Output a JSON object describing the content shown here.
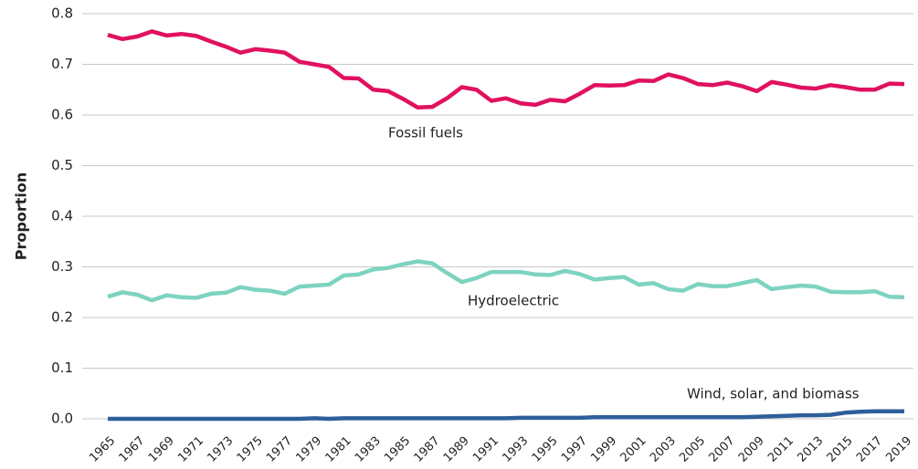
{
  "chart_data": {
    "type": "line",
    "y_label": "Proportion",
    "x": [
      1965,
      1966,
      1967,
      1968,
      1969,
      1970,
      1971,
      1972,
      1973,
      1974,
      1975,
      1976,
      1977,
      1978,
      1979,
      1980,
      1981,
      1982,
      1983,
      1984,
      1985,
      1986,
      1987,
      1988,
      1989,
      1990,
      1991,
      1992,
      1993,
      1994,
      1995,
      1996,
      1997,
      1998,
      1999,
      2000,
      2001,
      2002,
      2003,
      2004,
      2005,
      2006,
      2007,
      2008,
      2009,
      2010,
      2011,
      2012,
      2013,
      2014,
      2015,
      2016,
      2017,
      2018,
      2019
    ],
    "xlim": [
      1965,
      2019
    ],
    "xticks": [
      1965,
      1967,
      1969,
      1971,
      1973,
      1975,
      1977,
      1979,
      1981,
      1983,
      1985,
      1987,
      1989,
      1991,
      1993,
      1995,
      1997,
      1999,
      2001,
      2003,
      2005,
      2007,
      2009,
      2011,
      2013,
      2015,
      2017,
      2019
    ],
    "ylim": [
      0,
      0.8
    ],
    "yticks": [
      {
        "value": 0,
        "label": "0.0"
      },
      0.1,
      0.2,
      0.3,
      0.4,
      0.5,
      0.6,
      0.7,
      0.8
    ],
    "grid": true,
    "series": [
      {
        "name": "Fossil fuels",
        "color": "#e0115f",
        "values": [
          0.758,
          0.75,
          0.755,
          0.765,
          0.757,
          0.76,
          0.756,
          0.745,
          0.735,
          0.723,
          0.73,
          0.727,
          0.723,
          0.705,
          0.7,
          0.695,
          0.673,
          0.672,
          0.65,
          0.647,
          0.632,
          0.615,
          0.616,
          0.633,
          0.655,
          0.65,
          0.628,
          0.633,
          0.623,
          0.62,
          0.63,
          0.627,
          0.642,
          0.659,
          0.658,
          0.659,
          0.668,
          0.667,
          0.68,
          0.673,
          0.661,
          0.659,
          0.664,
          0.657,
          0.647,
          0.665,
          0.66,
          0.654,
          0.652,
          0.659,
          0.655,
          0.65,
          0.65,
          0.662,
          0.661
        ]
      },
      {
        "name": "Hydroelectric",
        "color": "#7dd3c0",
        "values": [
          0.241,
          0.25,
          0.245,
          0.234,
          0.244,
          0.24,
          0.239,
          0.247,
          0.249,
          0.26,
          0.255,
          0.253,
          0.247,
          0.261,
          0.263,
          0.265,
          0.283,
          0.285,
          0.295,
          0.298,
          0.305,
          0.311,
          0.307,
          0.288,
          0.27,
          0.278,
          0.29,
          0.29,
          0.29,
          0.285,
          0.284,
          0.292,
          0.286,
          0.275,
          0.278,
          0.28,
          0.265,
          0.268,
          0.256,
          0.253,
          0.266,
          0.262,
          0.262,
          0.268,
          0.274,
          0.256,
          0.26,
          0.263,
          0.261,
          0.251,
          0.25,
          0.25,
          0.252,
          0.241,
          0.24
        ]
      },
      {
        "name": "Wind, solar, and biomass",
        "color": "#2e5f9a",
        "values": [
          0,
          0,
          0,
          0,
          0,
          0,
          0,
          0,
          0,
          0,
          0,
          0,
          0,
          0,
          0.001,
          0,
          0.001,
          0.001,
          0.001,
          0.001,
          0.001,
          0.001,
          0.001,
          0.001,
          0.001,
          0.001,
          0.001,
          0.001,
          0.002,
          0.002,
          0.002,
          0.002,
          0.002,
          0.003,
          0.003,
          0.003,
          0.003,
          0.003,
          0.003,
          0.003,
          0.003,
          0.003,
          0.003,
          0.003,
          0.004,
          0.005,
          0.006,
          0.007,
          0.007,
          0.008,
          0.012,
          0.014,
          0.015,
          0.015,
          0.015
        ]
      }
    ]
  }
}
